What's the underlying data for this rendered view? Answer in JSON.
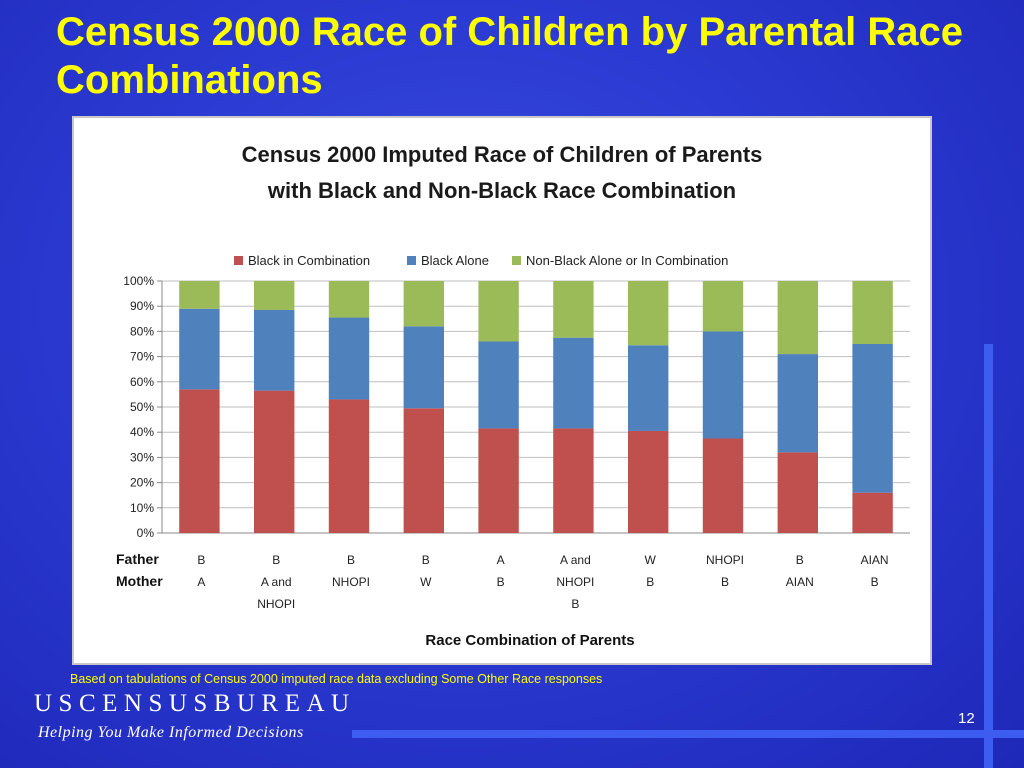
{
  "slide": {
    "title": "Census 2000 Race of Children by Parental Race Combinations",
    "footnote": "Based on tabulations of Census 2000 imputed race data excluding Some Other Race responses",
    "brand": "USCENSUSBUREAU",
    "tagline": "Helping You Make Informed Decisions",
    "page_number": "12"
  },
  "chart_data": {
    "type": "bar",
    "stacked": true,
    "percent": true,
    "title": "Census 2000 Imputed Race of Children of Parents with Black and Non-Black Race Combination",
    "title_lines": [
      "Census 2000 Imputed Race of Children of Parents",
      "with Black and Non-Black Race Combination"
    ],
    "xlabel": "Race Combination of Parents",
    "ylabel": "",
    "ylim": [
      0,
      100
    ],
    "yticks": [
      "0%",
      "10%",
      "20%",
      "30%",
      "40%",
      "50%",
      "60%",
      "70%",
      "80%",
      "90%",
      "100%"
    ],
    "grid": true,
    "legend_position": "top",
    "row_labels": [
      "Father",
      "Mother"
    ],
    "categories": [
      {
        "father": "B",
        "mother": [
          "A"
        ]
      },
      {
        "father": "B",
        "mother": [
          "A and",
          "NHOPI"
        ]
      },
      {
        "father": "B",
        "mother": [
          "NHOPI"
        ]
      },
      {
        "father": "B",
        "mother": [
          "W"
        ]
      },
      {
        "father": "A",
        "mother": [
          "B"
        ]
      },
      {
        "father": "A and",
        "mother": [
          "NHOPI",
          "B"
        ]
      },
      {
        "father": "W",
        "mother": [
          "B"
        ]
      },
      {
        "father": "NHOPI",
        "mother": [
          "B"
        ]
      },
      {
        "father": "B",
        "mother": [
          "AIAN"
        ]
      },
      {
        "father": "AIAN",
        "mother": [
          "B"
        ]
      }
    ],
    "series": [
      {
        "name": "Black in Combination",
        "color": "#c0504d",
        "values": [
          57,
          56.5,
          53,
          49.5,
          41.5,
          41.5,
          40.5,
          37.5,
          32,
          16
        ]
      },
      {
        "name": "Black Alone",
        "color": "#4f81bd",
        "values": [
          32,
          32,
          32.5,
          32.5,
          34.5,
          36,
          34,
          42.5,
          39,
          59
        ]
      },
      {
        "name": "Non-Black Alone or In Combination",
        "color": "#9bbb59",
        "values": [
          11,
          11.5,
          14.5,
          18,
          24,
          22.5,
          25.5,
          20,
          29,
          25
        ]
      }
    ]
  }
}
